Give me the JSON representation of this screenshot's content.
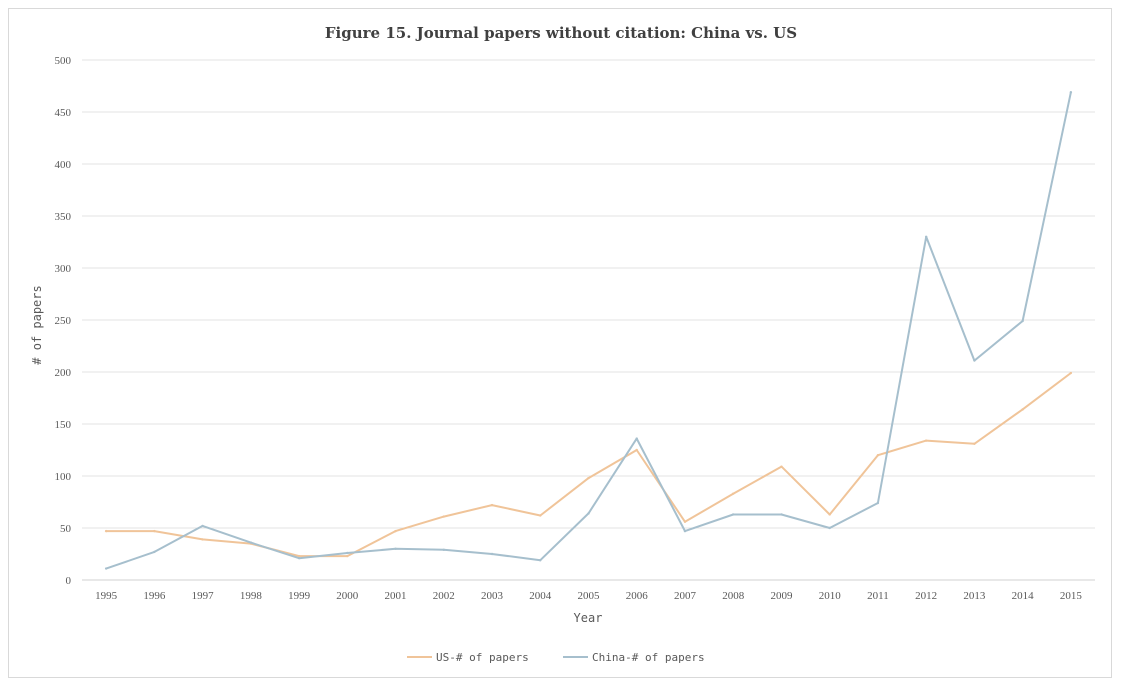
{
  "chart_data": {
    "type": "line",
    "title": "Figure 15. Journal papers without citation: China vs. US",
    "xlabel": "Year",
    "ylabel": "# of papers",
    "ylim": [
      0,
      500
    ],
    "yticks": [
      0,
      50,
      100,
      150,
      200,
      250,
      300,
      350,
      400,
      450,
      500
    ],
    "grid": true,
    "legend_position": "bottom",
    "categories": [
      "1995",
      "1996",
      "1997",
      "1998",
      "1999",
      "2000",
      "2001",
      "2002",
      "2003",
      "2004",
      "2005",
      "2006",
      "2007",
      "2008",
      "2009",
      "2010",
      "2011",
      "2012",
      "2013",
      "2014",
      "2015"
    ],
    "series": [
      {
        "name": "US-# of papers",
        "color": "#f0c499",
        "values": [
          47,
          47,
          39,
          35,
          23,
          23,
          47,
          61,
          72,
          62,
          98,
          125,
          56,
          83,
          109,
          63,
          120,
          134,
          131,
          164,
          199
        ]
      },
      {
        "name": "China-# of papers",
        "color": "#a6bfcd",
        "values": [
          11,
          27,
          52,
          36,
          21,
          26,
          30,
          29,
          25,
          19,
          64,
          136,
          47,
          63,
          63,
          50,
          74,
          330,
          211,
          249,
          469
        ]
      }
    ]
  }
}
